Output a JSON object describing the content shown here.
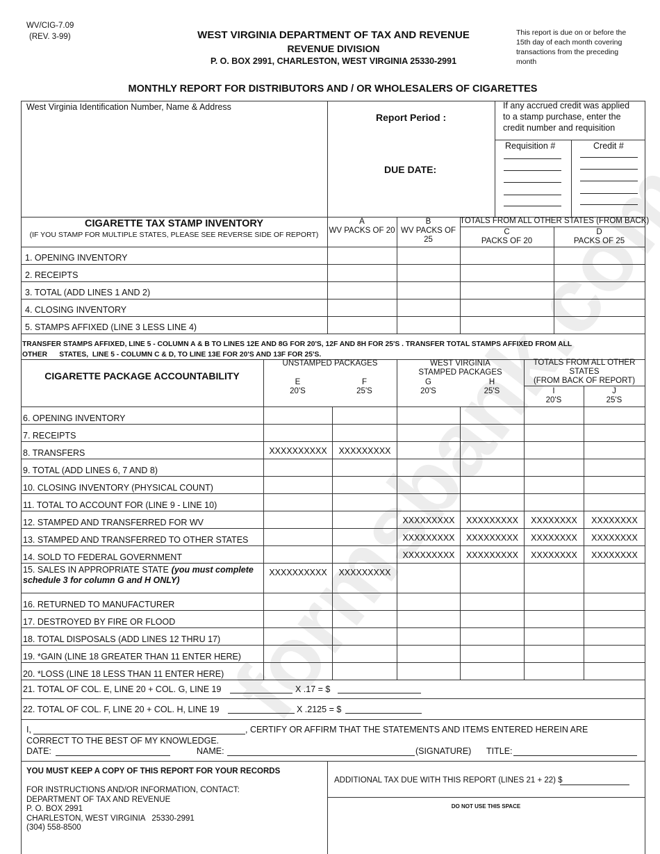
{
  "header": {
    "form_number": "WV/CIG-7.09",
    "revision": "(REV. 3-99)",
    "department": "WEST VIRGINIA DEPARTMENT OF TAX AND REVENUE",
    "division": "REVENUE DIVISION",
    "address": "P. O. BOX 2991, CHARLESTON, WEST VIRGINIA 25330-2991",
    "due_note": [
      "This report is due on or before the",
      "15th day of each month covering",
      "transactions from the preceding",
      "month"
    ],
    "report_title": "MONTHLY REPORT FOR DISTRIBUTORS AND / OR WHOLESALERS OF CIGARETTES"
  },
  "id_box": {
    "id_label": "West Virginia Identification Number, Name & Address",
    "report_period_label": "Report Period :",
    "due_date_label": "DUE DATE:",
    "credit_note": [
      "If any accrued credit was applied",
      "to a stamp purchase, enter the",
      "credit number and requisition"
    ],
    "requisition_label": "Requisition #",
    "credit_label": "Credit #"
  },
  "stamp_inventory": {
    "title": "CIGARETTE TAX STAMP INVENTORY",
    "subtitle": "(IF YOU STAMP FOR MULTIPLE STATES, PLEASE SEE REVERSE SIDE OF REPORT)",
    "col_a": [
      "A",
      "WV PACKS OF 20"
    ],
    "col_b": [
      "B",
      "WV PACKS OF",
      "25"
    ],
    "other_states": "TOTALS FROM ALL OTHER STATES (FROM BACK)",
    "col_c": [
      "C",
      "PACKS OF 20"
    ],
    "col_d": [
      "D",
      "PACKS OF 25"
    ],
    "rows": [
      "1.  OPENING INVENTORY",
      "2.  RECEIPTS",
      "3.  TOTAL (ADD LINES 1 AND 2)",
      "4.  CLOSING INVENTORY",
      "5.  STAMPS AFFIXED (LINE 3 LESS LINE 4)"
    ]
  },
  "transfer_note": [
    "TRANSFER STAMPS AFFIXED,  LINE 5 - COLUMN A & B TO LINES 12E AND 8G FOR 20'S, 12F AND 8H FOR 25'S . TRANSFER TOTAL STAMPS AFFIXED FROM ALL",
    "OTHER      STATES,  LINE 5 - COLUMN C & D, TO LINE 13E FOR 20'S AND 13F FOR 25'S."
  ],
  "package_accountability": {
    "title": "CIGARETTE PACKAGE ACCOUNTABILITY",
    "unstamped": "UNSTAMPED PACKAGES",
    "wv_stamped": [
      "WEST VIRGINIA",
      "STAMPED PACKAGES"
    ],
    "other_states": [
      "TOTALS FROM ALL OTHER",
      "STATES",
      "(FROM BACK OF REPORT)"
    ],
    "columns": [
      {
        "letter": "E",
        "size": "20'S"
      },
      {
        "letter": "F",
        "size": "25'S"
      },
      {
        "letter": "G",
        "size": "20'S"
      },
      {
        "letter": "H",
        "size": "25'S"
      },
      {
        "letter": "I",
        "size": "20'S"
      },
      {
        "letter": "J",
        "size": "25'S"
      }
    ],
    "rows": [
      {
        "label": "6.  OPENING INVENTORY",
        "cells": [
          "",
          "",
          "",
          "",
          "",
          ""
        ]
      },
      {
        "label": "7.  RECEIPTS",
        "cells": [
          "",
          "",
          "",
          "",
          "",
          ""
        ]
      },
      {
        "label": "8.  TRANSFERS",
        "cells": [
          "XXXXXXXXXX",
          "XXXXXXXXX",
          "",
          "",
          "",
          ""
        ]
      },
      {
        "label": "9.  TOTAL (ADD LINES 6, 7 AND 8)",
        "cells": [
          "",
          "",
          "",
          "",
          "",
          ""
        ]
      },
      {
        "label": "10.  CLOSING INVENTORY (PHYSICAL COUNT)",
        "cells": [
          "",
          "",
          "",
          "",
          "",
          ""
        ]
      },
      {
        "label": "11.  TOTAL TO ACCOUNT FOR (LINE 9 - LINE 10)",
        "cells": [
          "",
          "",
          "",
          "",
          "",
          ""
        ]
      },
      {
        "label": "12.  STAMPED AND TRANSFERRED FOR WV",
        "cells": [
          "",
          "",
          "XXXXXXXXX",
          "XXXXXXXXX",
          "XXXXXXXX",
          "XXXXXXXX"
        ]
      },
      {
        "label": "13.  STAMPED AND TRANSFERRED TO OTHER STATES",
        "cells": [
          "",
          "",
          "XXXXXXXXX",
          "XXXXXXXXX",
          "XXXXXXXX",
          "XXXXXXXX"
        ]
      },
      {
        "label": "14.  SOLD TO FEDERAL GOVERNMENT",
        "cells": [
          "",
          "",
          "XXXXXXXXX",
          "XXXXXXXXX",
          "XXXXXXXX",
          "XXXXXXXX"
        ]
      },
      {
        "label": "15.  SALES IN APPROPRIATE STATE",
        "note": "(you must complete",
        "note2": "schedule 3 for column G and H ONLY)",
        "cells": [
          "XXXXXXXXXX",
          "XXXXXXXXX",
          "",
          "",
          "",
          ""
        ]
      },
      {
        "label": "16.  RETURNED TO MANUFACTURER",
        "cells": [
          "",
          "",
          "",
          "",
          "",
          ""
        ]
      },
      {
        "label": "17.  DESTROYED BY FIRE OR FLOOD",
        "cells": [
          "",
          "",
          "",
          "",
          "",
          ""
        ]
      },
      {
        "label": "18.  TOTAL DISPOSALS (ADD LINES 12 THRU 17)",
        "cells": [
          "",
          "",
          "",
          "",
          "",
          ""
        ]
      },
      {
        "label": "19.  *GAIN (LINE 18 GREATER THAN 11 ENTER HERE)",
        "cells": [
          "",
          "",
          "",
          "",
          "",
          ""
        ]
      },
      {
        "label": "20.  *LOSS (LINE 18 LESS THAN 11 ENTER HERE)",
        "cells": [
          "",
          "",
          "",
          "",
          "",
          ""
        ]
      }
    ]
  },
  "line21": {
    "label": "21.  TOTAL OF COL. E, LINE 20 + COL. G,  LINE 19",
    "rate": "X .17 = $"
  },
  "line22": {
    "label": "22.  TOTAL OF COL. F, LINE 20 + COL. H, LINE 19",
    "rate": "X .2125 = $"
  },
  "certification": {
    "prefix": "I,",
    "statement": ", CERTIFY OR AFFIRM THAT THE STATEMENTS AND ITEMS ENTERED HEREIN ARE",
    "statement2": "CORRECT TO THE BEST OF MY KNOWLEDGE.",
    "date_label": "DATE:",
    "name_label": "NAME:",
    "signature_label": "(SIGNATURE)",
    "title_label": "TITLE:"
  },
  "footer": {
    "keep_copy": "YOU MUST KEEP A COPY OF THIS REPORT FOR YOUR RECORDS",
    "contact": [
      "FOR INSTRUCTIONS AND/OR INFORMATION, CONTACT:",
      "DEPARTMENT OF TAX AND REVENUE",
      "P. O. BOX 2991",
      "CHARLESTON, WEST VIRGINIA   25330-2991",
      "(304) 558-8500"
    ],
    "additional_tax": "ADDITIONAL TAX DUE WITH THIS REPORT (LINES 21 + 22) $",
    "do_not_use": "DO NOT USE THIS SPACE"
  },
  "watermark": "formsbank.com"
}
